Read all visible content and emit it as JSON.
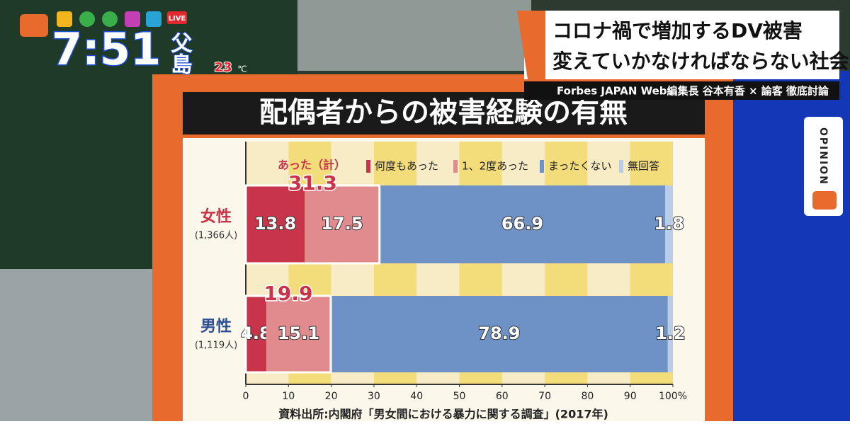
{
  "overlay": {
    "time": "7:51",
    "place": "父島",
    "temperature": "23",
    "temperature_unit": "℃",
    "live": "LIVE",
    "headline": [
      "コロナ禍で増加するDV被害",
      "変えていかなければならない社会構造"
    ],
    "byline": "Forbes JAPAN Web編集長 谷本有香 × 論客 徹底討論",
    "tab": "OPINION"
  },
  "chart_data": {
    "type": "hbar-stacked",
    "title": "配偶者からの被害経験の有無",
    "categories": [
      "女性",
      "男性"
    ],
    "category_notes": [
      "(1,366人)",
      "(1,119人)"
    ],
    "category_colors": [
      "#c8344a",
      "#2f4f94"
    ],
    "series": [
      {
        "name": "何度もあった",
        "color": "#c8344a",
        "values": [
          13.8,
          4.8
        ]
      },
      {
        "name": "1、2度あった",
        "color": "#e28b8e",
        "values": [
          17.5,
          15.1
        ]
      },
      {
        "name": "まったくない",
        "color": "#6e92c6",
        "values": [
          66.9,
          78.9
        ]
      },
      {
        "name": "無回答",
        "color": "#b9cde6",
        "values": [
          1.8,
          1.2
        ]
      }
    ],
    "totals": {
      "label": "あった（計）",
      "values": [
        31.3,
        19.9
      ]
    },
    "xlim": [
      0,
      100
    ],
    "xticks": [
      0,
      10,
      20,
      30,
      40,
      50,
      60,
      70,
      80,
      90,
      {
        "value": 100,
        "label": "100%"
      }
    ],
    "source": "資料出所:内閣府「男女間における暴力に関する調査」(2017年)"
  }
}
